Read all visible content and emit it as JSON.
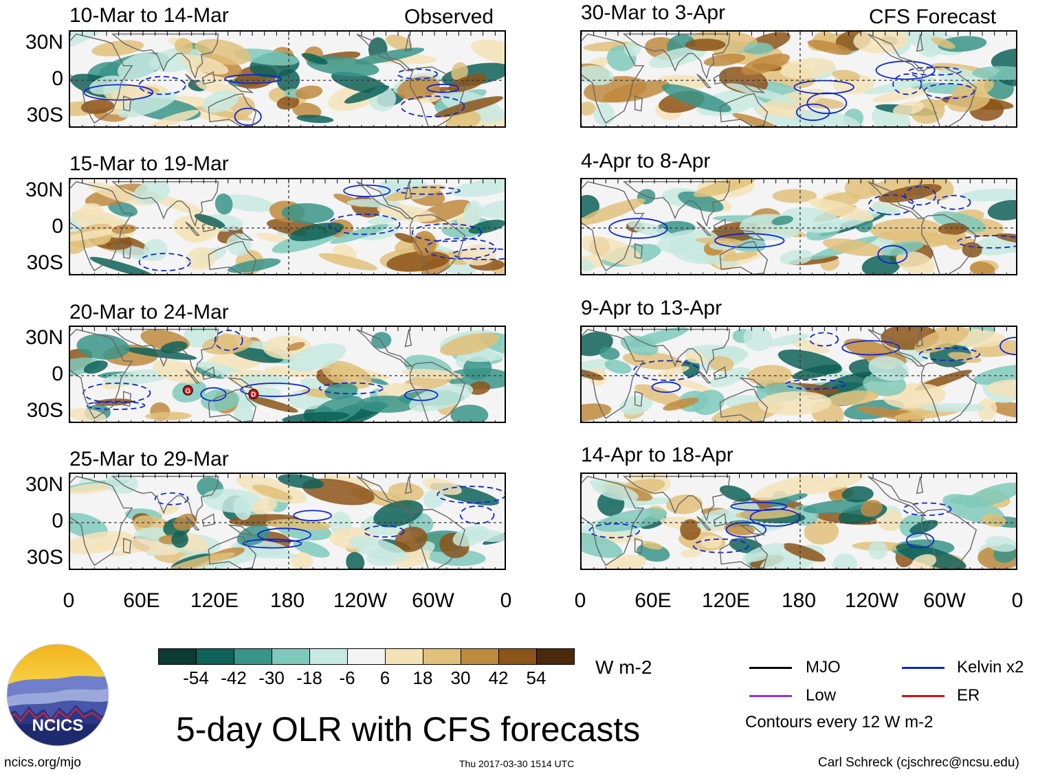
{
  "observed_label": "Observed",
  "forecast_label": "CFS Forecast",
  "left_panels": [
    {
      "title": "10-Mar to 14-Mar"
    },
    {
      "title": "15-Mar to 19-Mar"
    },
    {
      "title": "20-Mar to 24-Mar"
    },
    {
      "title": "25-Mar to 29-Mar"
    }
  ],
  "right_panels": [
    {
      "title": "30-Mar to 3-Apr"
    },
    {
      "title": "4-Apr to 8-Apr"
    },
    {
      "title": "9-Apr to 13-Apr"
    },
    {
      "title": "14-Apr to 18-Apr"
    }
  ],
  "lat_labels": [
    "30N",
    "0",
    "30S"
  ],
  "lon_labels": [
    "0",
    "60E",
    "120E",
    "180",
    "120W",
    "60W",
    "0"
  ],
  "colorbar": {
    "colors": [
      "#0b3b32",
      "#0e6258",
      "#3a9488",
      "#7fc9bb",
      "#c7e9e1",
      "#f4f4f4",
      "#f5e3b8",
      "#e0c07a",
      "#c08a3e",
      "#8c5419",
      "#4a2a0a"
    ],
    "labels": [
      "-54",
      "-42",
      "-30",
      "-18",
      "-6",
      "6",
      "18",
      "30",
      "42",
      "54"
    ],
    "units": "W m-2"
  },
  "legend": {
    "items": [
      {
        "label": "MJO",
        "color": "#000000"
      },
      {
        "label": "Kelvin x2",
        "color": "#0b24d6"
      },
      {
        "label": "Low",
        "color": "#9b30d8"
      },
      {
        "label": "ER",
        "color": "#d21010"
      }
    ],
    "note": "Contours every 12 W m-2"
  },
  "main_title": "5-day OLR with CFS forecasts",
  "logo_text": "NCICS",
  "footer": {
    "url": "ncics.org/mjo",
    "timestamp": "Thu 2017-03-30 1514 UTC",
    "author": "Carl Schreck (cjschrec@ncsu.edu)"
  },
  "storm_labels": [
    "G",
    "D"
  ]
}
